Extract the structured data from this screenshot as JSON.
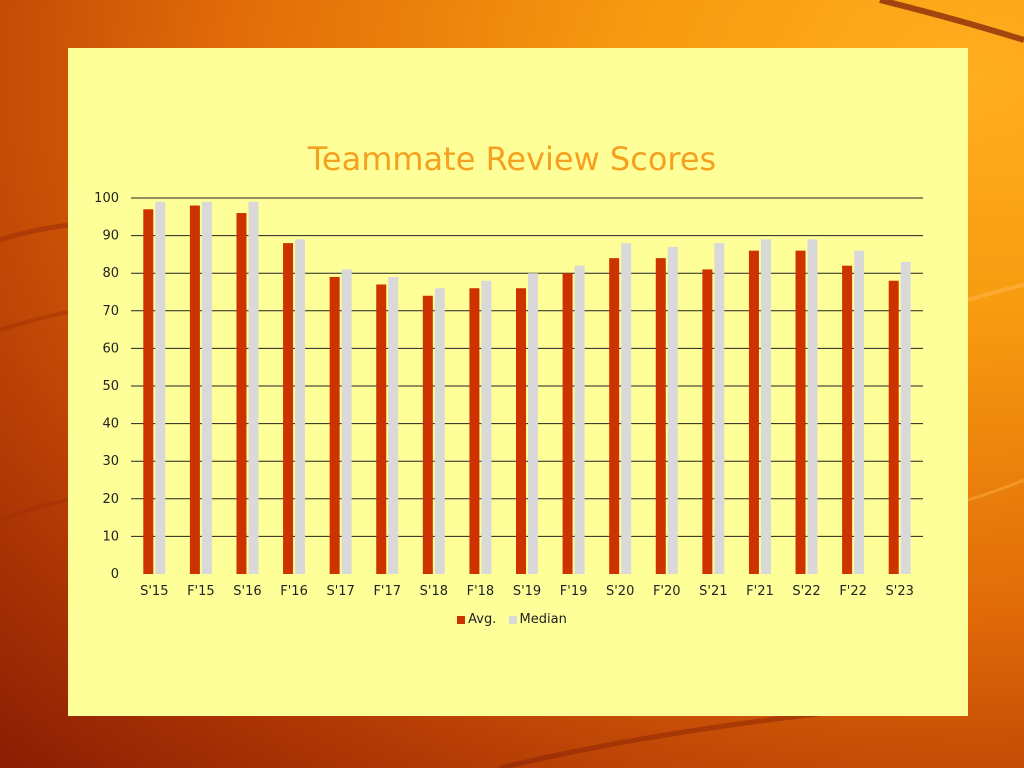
{
  "colors": {
    "avg": "#cc3300",
    "median": "#d9d9d9",
    "title": "#f5a01e",
    "panel": "#ffff99"
  },
  "chart_data": {
    "type": "bar",
    "title": "Teammate Review Scores",
    "categories": [
      "S'15",
      "F'15",
      "S'16",
      "F'16",
      "S'17",
      "F'17",
      "S'18",
      "F'18",
      "S'19",
      "F'19",
      "S'20",
      "F'20",
      "S'21",
      "F'21",
      "S'22",
      "F'22",
      "S'23"
    ],
    "series": [
      {
        "name": "Avg.",
        "values": [
          97,
          98,
          96,
          88,
          79,
          77,
          74,
          76,
          76,
          80,
          84,
          84,
          81,
          86,
          86,
          82,
          78
        ]
      },
      {
        "name": "Median",
        "values": [
          99,
          99,
          99,
          89,
          81,
          79,
          76,
          78,
          80,
          82,
          88,
          87,
          88,
          89,
          89,
          86,
          83
        ]
      }
    ],
    "ylim": [
      0,
      100
    ],
    "yticks": [
      0,
      10,
      20,
      30,
      40,
      50,
      60,
      70,
      80,
      90,
      100
    ],
    "grid": true,
    "legend_position": "bottom"
  }
}
